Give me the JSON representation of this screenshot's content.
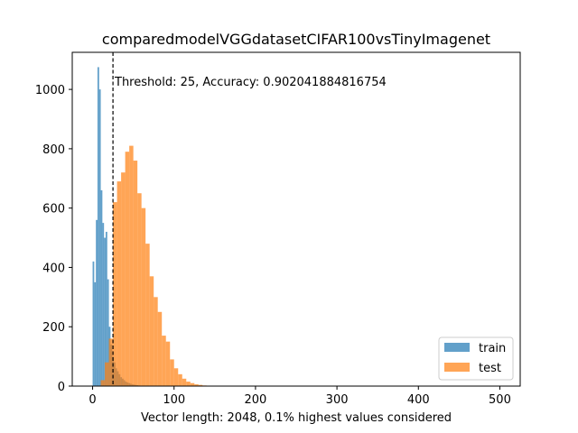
{
  "chart_data": {
    "type": "bar",
    "title": "comparedmodelVGGdatasetCIFAR100vsTinyImagenet",
    "xlabel": "Vector length: 2048, 0.1% highest values considered",
    "ylabel": "",
    "xlim": [
      -25,
      525
    ],
    "ylim": [
      0,
      1125
    ],
    "xticks": [
      0,
      100,
      200,
      300,
      400,
      500
    ],
    "yticks": [
      0,
      200,
      400,
      600,
      800,
      1000
    ],
    "grid": false,
    "legend_position": "lower-right",
    "threshold": {
      "x": 25,
      "label": "Threshold: 25, Accuracy: 0.902041884816754"
    },
    "series": [
      {
        "name": "train",
        "color": "#1f77b4",
        "opacity": 0.7,
        "bin_width": 2,
        "bins": [
          [
            0,
            420
          ],
          [
            2,
            350
          ],
          [
            4,
            560
          ],
          [
            6,
            1075
          ],
          [
            8,
            1000
          ],
          [
            10,
            660
          ],
          [
            12,
            550
          ],
          [
            14,
            500
          ],
          [
            16,
            520
          ],
          [
            18,
            360
          ],
          [
            20,
            200
          ],
          [
            22,
            140
          ],
          [
            24,
            100
          ],
          [
            26,
            80
          ],
          [
            28,
            60
          ],
          [
            30,
            50
          ],
          [
            32,
            40
          ],
          [
            34,
            30
          ],
          [
            36,
            25
          ],
          [
            38,
            20
          ],
          [
            40,
            15
          ],
          [
            42,
            12
          ],
          [
            44,
            10
          ],
          [
            46,
            8
          ],
          [
            48,
            6
          ],
          [
            50,
            5
          ],
          [
            52,
            4
          ],
          [
            54,
            3
          ],
          [
            56,
            2
          ],
          [
            58,
            1
          ]
        ]
      },
      {
        "name": "test",
        "color": "#ff7f0e",
        "opacity": 0.7,
        "bin_width": 5,
        "bins": [
          [
            10,
            20
          ],
          [
            15,
            80
          ],
          [
            20,
            160
          ],
          [
            25,
            620
          ],
          [
            30,
            690
          ],
          [
            35,
            720
          ],
          [
            40,
            790
          ],
          [
            45,
            810
          ],
          [
            50,
            760
          ],
          [
            55,
            650
          ],
          [
            60,
            600
          ],
          [
            65,
            480
          ],
          [
            70,
            370
          ],
          [
            75,
            300
          ],
          [
            80,
            250
          ],
          [
            85,
            170
          ],
          [
            90,
            150
          ],
          [
            95,
            90
          ],
          [
            100,
            60
          ],
          [
            105,
            40
          ],
          [
            110,
            25
          ],
          [
            115,
            15
          ],
          [
            120,
            10
          ],
          [
            125,
            6
          ],
          [
            130,
            4
          ],
          [
            135,
            2
          ]
        ]
      }
    ]
  }
}
